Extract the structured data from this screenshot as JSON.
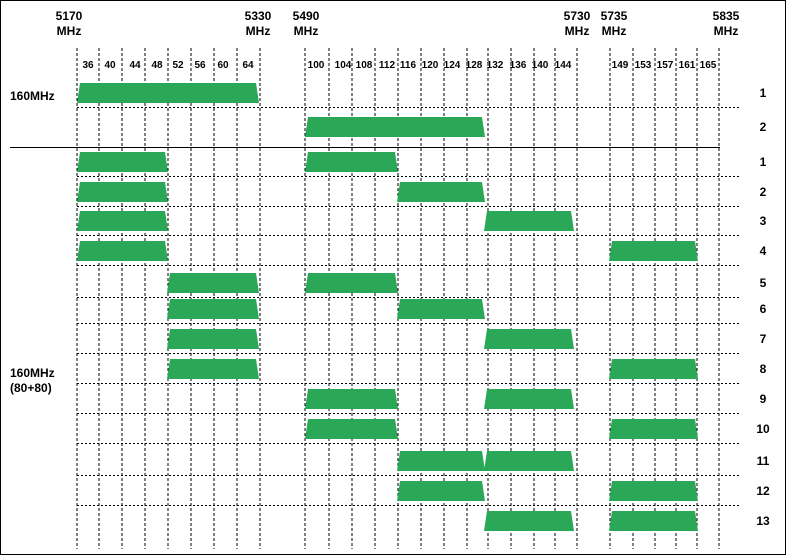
{
  "frequency_labels": [
    {
      "value": "5170",
      "unit": "MHz"
    },
    {
      "value": "5330",
      "unit": "MHz"
    },
    {
      "value": "5490",
      "unit": "MHz"
    },
    {
      "value": "5730",
      "unit": "MHz"
    },
    {
      "value": "5735",
      "unit": "MHz"
    },
    {
      "value": "5835",
      "unit": "MHz"
    }
  ],
  "channels": [
    "36",
    "40",
    "44",
    "48",
    "52",
    "56",
    "60",
    "64",
    "100",
    "104",
    "108",
    "112",
    "116",
    "120",
    "124",
    "128",
    "132",
    "136",
    "140",
    "144",
    "149",
    "153",
    "157",
    "161",
    "165"
  ],
  "groups": [
    {
      "name_lines": [
        "160MHz"
      ]
    },
    {
      "name_lines": [
        "160MHz",
        "(80+80)"
      ]
    }
  ],
  "rows": [
    {
      "group": 0,
      "label": "1",
      "segments": [
        [
          36,
          64
        ]
      ]
    },
    {
      "group": 0,
      "label": "2",
      "segments": [
        [
          100,
          128
        ]
      ]
    },
    {
      "group": 1,
      "label": "1",
      "segments": [
        [
          36,
          48
        ],
        [
          100,
          112
        ]
      ]
    },
    {
      "group": 1,
      "label": "2",
      "segments": [
        [
          36,
          48
        ],
        [
          116,
          128
        ]
      ]
    },
    {
      "group": 1,
      "label": "3",
      "segments": [
        [
          36,
          48
        ],
        [
          132,
          144
        ]
      ]
    },
    {
      "group": 1,
      "label": "4",
      "segments": [
        [
          36,
          48
        ],
        [
          149,
          161
        ]
      ]
    },
    {
      "group": 1,
      "label": "5",
      "segments": [
        [
          52,
          64
        ],
        [
          100,
          112
        ]
      ]
    },
    {
      "group": 1,
      "label": "6",
      "segments": [
        [
          52,
          64
        ],
        [
          116,
          128
        ]
      ]
    },
    {
      "group": 1,
      "label": "7",
      "segments": [
        [
          52,
          64
        ],
        [
          132,
          144
        ]
      ]
    },
    {
      "group": 1,
      "label": "8",
      "segments": [
        [
          52,
          64
        ],
        [
          149,
          161
        ]
      ]
    },
    {
      "group": 1,
      "label": "9",
      "segments": [
        [
          100,
          112
        ],
        [
          132,
          144
        ]
      ]
    },
    {
      "group": 1,
      "label": "10",
      "segments": [
        [
          100,
          112
        ],
        [
          149,
          161
        ]
      ]
    },
    {
      "group": 1,
      "label": "11",
      "segments": [
        [
          116,
          128
        ],
        [
          132,
          144
        ]
      ]
    },
    {
      "group": 1,
      "label": "12",
      "segments": [
        [
          116,
          128
        ],
        [
          149,
          161
        ]
      ]
    },
    {
      "group": 1,
      "label": "13",
      "segments": [
        [
          132,
          144
        ],
        [
          149,
          161
        ]
      ]
    }
  ],
  "colors": {
    "block": "#2aa858",
    "grid": "#000000",
    "background": "#ffffff"
  }
}
